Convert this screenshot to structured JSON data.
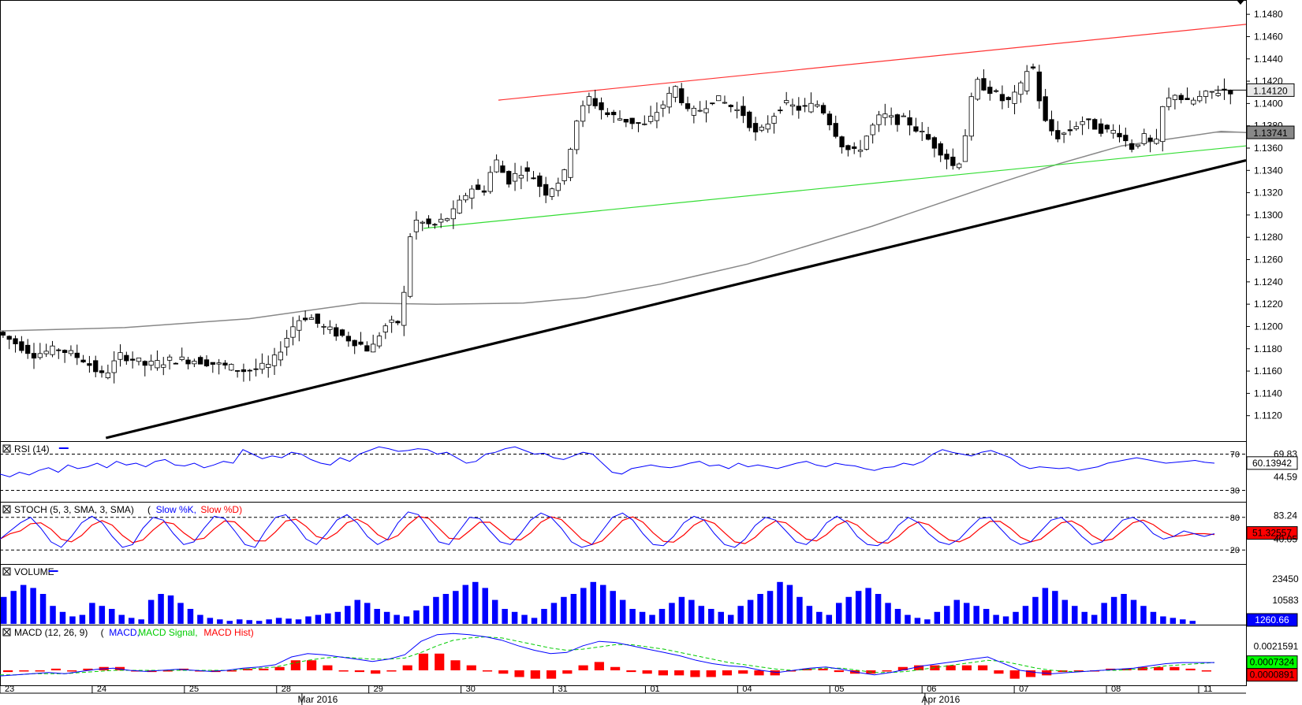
{
  "chart_data": {
    "type": "candlestick",
    "instrument_note": "",
    "price_axis": {
      "range": [
        1.11,
        1.149
      ],
      "ticks": [
        "1.1480",
        "1.1460",
        "1.1440",
        "1.1420",
        "1.1400",
        "1.1380",
        "1.1360",
        "1.1340",
        "1.1320",
        "1.1300",
        "1.1280",
        "1.1260",
        "1.1240",
        "1.1220",
        "1.1200",
        "1.1180",
        "1.1160",
        "1.1140",
        "1.1120"
      ],
      "last_price": "1.14120",
      "sma_value": "1.13741"
    },
    "trendlines": {
      "resistance": {
        "color": "#ff3333",
        "from": [
          0.4,
          1.1403
        ],
        "to": [
          1.0,
          1.1471
        ]
      },
      "channel_support": {
        "color": "#33dd33",
        "from": [
          0.34,
          1.1288
        ],
        "to": [
          1.0,
          1.1362
        ]
      },
      "main_support": {
        "color": "#000000",
        "from": [
          0.085,
          1.11
        ],
        "to": [
          1.0,
          1.1349
        ]
      }
    },
    "sma_path": [
      [
        0,
        1.1196
      ],
      [
        0.1,
        1.1199
      ],
      [
        0.2,
        1.1207
      ],
      [
        0.29,
        1.1221
      ],
      [
        0.35,
        1.122
      ],
      [
        0.42,
        1.1221
      ],
      [
        0.47,
        1.1226
      ],
      [
        0.53,
        1.1238
      ],
      [
        0.6,
        1.1256
      ],
      [
        0.65,
        1.1273
      ],
      [
        0.7,
        1.129
      ],
      [
        0.75,
        1.1309
      ],
      [
        0.8,
        1.1328
      ],
      [
        0.85,
        1.1346
      ],
      [
        0.9,
        1.1362
      ],
      [
        0.95,
        1.137
      ],
      [
        0.98,
        1.1375
      ],
      [
        1.0,
        1.1374
      ]
    ],
    "price_path": [
      [
        0,
        1.1195
      ],
      [
        0.015,
        1.1185
      ],
      [
        0.03,
        1.1175
      ],
      [
        0.05,
        1.118
      ],
      [
        0.07,
        1.117
      ],
      [
        0.085,
        1.1155
      ],
      [
        0.1,
        1.1175
      ],
      [
        0.12,
        1.1165
      ],
      [
        0.14,
        1.117
      ],
      [
        0.16,
        1.117
      ],
      [
        0.18,
        1.1165
      ],
      [
        0.2,
        1.116
      ],
      [
        0.22,
        1.1165
      ],
      [
        0.24,
        1.1205
      ],
      [
        0.25,
        1.121
      ],
      [
        0.26,
        1.12
      ],
      [
        0.27,
        1.1195
      ],
      [
        0.28,
        1.119
      ],
      [
        0.29,
        1.1185
      ],
      [
        0.3,
        1.1178
      ],
      [
        0.31,
        1.12
      ],
      [
        0.325,
        1.1205
      ],
      [
        0.33,
        1.1275
      ],
      [
        0.335,
        1.1295
      ],
      [
        0.35,
        1.129
      ],
      [
        0.365,
        1.13
      ],
      [
        0.38,
        1.1325
      ],
      [
        0.39,
        1.132
      ],
      [
        0.4,
        1.135
      ],
      [
        0.41,
        1.133
      ],
      [
        0.42,
        1.134
      ],
      [
        0.43,
        1.1335
      ],
      [
        0.44,
        1.132
      ],
      [
        0.455,
        1.1335
      ],
      [
        0.465,
        1.1385
      ],
      [
        0.475,
        1.1405
      ],
      [
        0.49,
        1.139
      ],
      [
        0.505,
        1.1385
      ],
      [
        0.52,
        1.138
      ],
      [
        0.535,
        1.14
      ],
      [
        0.545,
        1.1415
      ],
      [
        0.555,
        1.139
      ],
      [
        0.565,
        1.1395
      ],
      [
        0.575,
        1.1405
      ],
      [
        0.585,
        1.14
      ],
      [
        0.6,
        1.139
      ],
      [
        0.61,
        1.137
      ],
      [
        0.62,
        1.1385
      ],
      [
        0.63,
        1.14
      ],
      [
        0.645,
        1.1395
      ],
      [
        0.66,
        1.14
      ],
      [
        0.67,
        1.138
      ],
      [
        0.68,
        1.136
      ],
      [
        0.69,
        1.1355
      ],
      [
        0.7,
        1.1375
      ],
      [
        0.71,
        1.139
      ],
      [
        0.72,
        1.1385
      ],
      [
        0.73,
        1.1385
      ],
      [
        0.74,
        1.1375
      ],
      [
        0.75,
        1.1365
      ],
      [
        0.76,
        1.1355
      ],
      [
        0.77,
        1.134
      ],
      [
        0.775,
        1.136
      ],
      [
        0.785,
        1.142
      ],
      [
        0.8,
        1.141
      ],
      [
        0.81,
        1.14
      ],
      [
        0.82,
        1.141
      ],
      [
        0.83,
        1.144
      ],
      [
        0.84,
        1.1385
      ],
      [
        0.85,
        1.137
      ],
      [
        0.86,
        1.1375
      ],
      [
        0.87,
        1.1385
      ],
      [
        0.88,
        1.138
      ],
      [
        0.89,
        1.1375
      ],
      [
        0.9,
        1.1375
      ],
      [
        0.91,
        1.136
      ],
      [
        0.92,
        1.137
      ],
      [
        0.93,
        1.136
      ],
      [
        0.935,
        1.1395
      ],
      [
        0.945,
        1.141
      ],
      [
        0.955,
        1.14
      ],
      [
        0.965,
        1.1405
      ],
      [
        0.975,
        1.141
      ],
      [
        0.985,
        1.1412
      ],
      [
        0.99,
        1.1412
      ]
    ],
    "date_labels": [
      {
        "label": "23",
        "pos": 0.0
      },
      {
        "label": "24",
        "pos": 0.074
      },
      {
        "label": "25",
        "pos": 0.148
      },
      {
        "label": "28",
        "pos": 0.222
      },
      {
        "label": "29",
        "pos": 0.296
      },
      {
        "label": "30",
        "pos": 0.37
      },
      {
        "label": "31",
        "pos": 0.444
      },
      {
        "label": "01",
        "pos": 0.518
      },
      {
        "label": "04",
        "pos": 0.592
      },
      {
        "label": "05",
        "pos": 0.666
      },
      {
        "label": "06",
        "pos": 0.74
      },
      {
        "label": "07",
        "pos": 0.814
      },
      {
        "label": "08",
        "pos": 0.888
      },
      {
        "label": "11",
        "pos": 0.962
      }
    ],
    "month_labels": [
      {
        "label": "Mar 2016",
        "pos": 0.255
      },
      {
        "label": "Apr 2016",
        "pos": 0.755
      }
    ],
    "rsi": {
      "title": "RSI (14)",
      "levels": [
        "70",
        "30"
      ],
      "right_values": [
        "69.83",
        "60.13942",
        "44.59"
      ],
      "series": [
        48,
        45,
        50,
        47,
        52,
        55,
        50,
        58,
        54,
        56,
        60,
        55,
        62,
        58,
        60,
        56,
        62,
        64,
        58,
        57,
        60,
        55,
        58,
        62,
        60,
        75,
        70,
        65,
        68,
        66,
        72,
        70,
        64,
        60,
        58,
        66,
        62,
        70,
        74,
        78,
        76,
        73,
        74,
        76,
        75,
        70,
        72,
        66,
        60,
        62,
        70,
        72,
        76,
        78,
        74,
        70,
        71,
        66,
        64,
        68,
        72,
        70,
        60,
        50,
        48,
        54,
        56,
        58,
        56,
        55,
        57,
        60,
        62,
        57,
        58,
        54,
        60,
        56,
        58,
        56,
        54,
        57,
        60,
        62,
        58,
        56,
        60,
        58,
        57,
        54,
        52,
        55,
        56,
        60,
        58,
        62,
        70,
        75,
        72,
        70,
        68,
        72,
        74,
        70,
        66,
        58,
        54,
        56,
        55,
        54,
        55,
        52,
        54,
        56,
        60,
        62,
        64,
        66,
        64,
        62,
        60,
        61,
        62,
        63,
        61,
        60
      ]
    },
    "stoch": {
      "title": "STOCH (5, 3, SMA, 3, SMA)",
      "k_label": "Slow %K",
      "d_label": "Slow %D",
      "levels": [
        "80",
        "20"
      ],
      "right_values": [
        "83.24",
        "51.32557",
        "40.05"
      ],
      "k_series": [
        40,
        55,
        70,
        80,
        60,
        35,
        25,
        45,
        70,
        82,
        70,
        45,
        25,
        30,
        60,
        80,
        75,
        50,
        30,
        35,
        60,
        82,
        78,
        55,
        30,
        25,
        55,
        80,
        85,
        65,
        40,
        30,
        50,
        75,
        85,
        70,
        45,
        30,
        40,
        70,
        90,
        85,
        60,
        35,
        30,
        55,
        80,
        78,
        55,
        35,
        30,
        50,
        75,
        88,
        80,
        60,
        35,
        25,
        30,
        55,
        80,
        88,
        75,
        50,
        30,
        28,
        45,
        70,
        82,
        75,
        50,
        30,
        25,
        40,
        65,
        80,
        75,
        55,
        35,
        30,
        45,
        70,
        82,
        70,
        45,
        30,
        28,
        40,
        65,
        80,
        70,
        50,
        35,
        30,
        40,
        60,
        78,
        80,
        60,
        40,
        30,
        35,
        55,
        75,
        80,
        65,
        45,
        30,
        35,
        55,
        75,
        80,
        70,
        50,
        40,
        45,
        55,
        50,
        45,
        50
      ]
    },
    "volume": {
      "title": "VOLUME",
      "right_values": [
        "23450",
        "10583",
        "1260.66"
      ],
      "max": 30000,
      "series": [
        18000,
        22000,
        26000,
        24000,
        20000,
        12000,
        8000,
        5000,
        6000,
        14000,
        12000,
        10000,
        6000,
        4000,
        3000,
        16000,
        20000,
        19000,
        14000,
        10000,
        6000,
        4000,
        3000,
        2000,
        3000,
        2500,
        2000,
        3000,
        4000,
        3500,
        3000,
        5000,
        6000,
        7000,
        8000,
        12000,
        16000,
        14000,
        10000,
        8000,
        6000,
        5000,
        9000,
        12000,
        18000,
        20000,
        22000,
        26000,
        28000,
        24000,
        16000,
        10000,
        8000,
        6000,
        4000,
        10000,
        14000,
        18000,
        20000,
        24000,
        28000,
        26000,
        22000,
        16000,
        10000,
        8000,
        6000,
        10000,
        14000,
        18000,
        16000,
        12000,
        10000,
        8000,
        6000,
        12000,
        16000,
        20000,
        22000,
        28000,
        26000,
        18000,
        12000,
        8000,
        6000,
        14000,
        18000,
        22000,
        24000,
        20000,
        14000,
        10000,
        6000,
        4000,
        3000,
        8000,
        12000,
        16000,
        14000,
        12000,
        10000,
        6000,
        5000,
        8000,
        12000,
        18000,
        24000,
        22000,
        16000,
        12000,
        8000,
        6000,
        14000,
        18000,
        20000,
        16000,
        12000,
        8000,
        5000,
        4000,
        3000,
        2000
      ]
    },
    "macd": {
      "title": "MACD (12, 26, 9)",
      "macd_label": "MACD",
      "signal_label": "MACD Signal",
      "hist_label": "MACD Hist",
      "right_values": [
        "0.0021591",
        "0.0007324",
        "0.0000891"
      ],
      "macd_series": [
        -0.0005,
        -0.0004,
        -0.0003,
        -0.0002,
        -0.0003,
        -0.0001,
        0.0001,
        0.0002,
        0.0,
        -0.0001,
        0.0,
        0.0001,
        0.0,
        -0.0001,
        0.0,
        0.0002,
        0.0003,
        0.0005,
        0.0012,
        0.0015,
        0.0014,
        0.0012,
        0.001,
        0.0008,
        0.001,
        0.0014,
        0.0026,
        0.0032,
        0.0033,
        0.0032,
        0.003,
        0.0027,
        0.0022,
        0.0018,
        0.0015,
        0.0016,
        0.0022,
        0.0026,
        0.0025,
        0.0022,
        0.0019,
        0.0016,
        0.0013,
        0.0009,
        0.0006,
        0.0004,
        0.0003,
        0.0,
        -0.0002,
        0.0,
        0.0002,
        0.0003,
        0.0001,
        -0.0002,
        -0.0004,
        -0.0002,
        0.0001,
        0.0004,
        0.0006,
        0.0008,
        0.001,
        0.0012,
        0.0006,
        0.0,
        -0.0002,
        -0.0003,
        -0.0002,
        -0.0001,
        0.0,
        0.0001,
        0.0002,
        0.0004,
        0.0006,
        0.0007,
        0.0007,
        0.0007
      ],
      "signal_series": [
        -0.0004,
        -0.0004,
        -0.0003,
        -0.0003,
        -0.0003,
        -0.0002,
        -0.0001,
        0.0,
        0.0,
        0.0,
        0.0,
        0.0,
        0.0,
        0.0,
        0.0,
        0.0001,
        0.0002,
        0.0003,
        0.0006,
        0.0009,
        0.0011,
        0.0012,
        0.0011,
        0.001,
        0.001,
        0.0011,
        0.0016,
        0.0022,
        0.0027,
        0.0029,
        0.003,
        0.0029,
        0.0026,
        0.0023,
        0.002,
        0.0018,
        0.0019,
        0.0021,
        0.0023,
        0.0023,
        0.0021,
        0.0019,
        0.0016,
        0.0013,
        0.001,
        0.0007,
        0.0005,
        0.0003,
        0.0001,
        0.0,
        0.0001,
        0.0002,
        0.0002,
        0.0,
        -0.0002,
        -0.0002,
        -0.0001,
        0.0001,
        0.0003,
        0.0005,
        0.0007,
        0.0009,
        0.0008,
        0.0005,
        0.0002,
        0.0,
        -0.0001,
        -0.0001,
        0.0,
        0.0,
        0.0001,
        0.0002,
        0.0004,
        0.0005,
        0.0006,
        0.0007
      ]
    }
  }
}
